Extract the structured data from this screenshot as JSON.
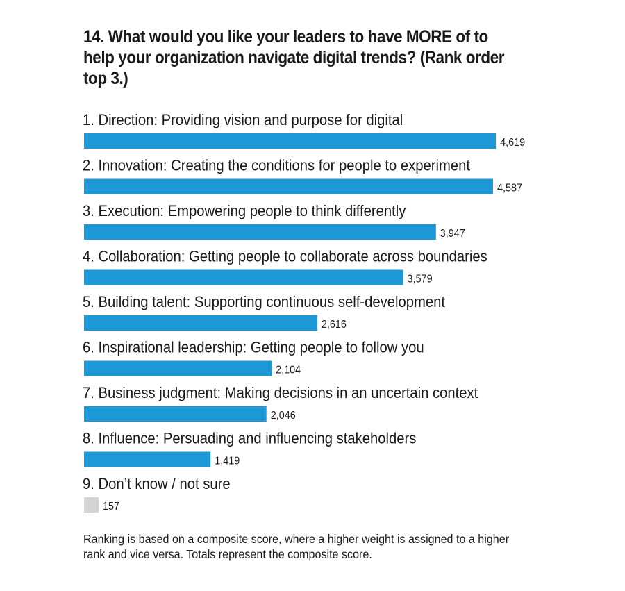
{
  "title": "14. What would you like your leaders to have MORE of to help your organization navigate digital trends? (Rank order top 3.)",
  "footnote": "Ranking is based on a composite score, where a higher weight is assigned to a higher rank and vice versa. Totals represent the composite score.",
  "colors": {
    "bar": "#1b98d5",
    "bar_muted": "#d4d4d4",
    "text": "#1a1a1a"
  },
  "chart_data": {
    "type": "bar",
    "orientation": "horizontal",
    "categories": [
      "1. Direction: Providing vision and purpose for digital",
      "2. Innovation: Creating the conditions for people to experiment",
      "3. Execution: Empowering people to think differently",
      "4. Collaboration: Getting people to collaborate across boundaries",
      "5. Building talent: Supporting continuous self-development",
      "6. Inspirational leadership: Getting people to follow you",
      "7. Business judgment: Making decisions in an uncertain context",
      "8. Influence: Persuading and influencing stakeholders",
      "9. Don’t know / not sure"
    ],
    "values": [
      4619,
      4587,
      3947,
      3579,
      2616,
      2104,
      2046,
      1419,
      157
    ],
    "value_labels": [
      "4,619",
      "4,587",
      "3,947",
      "3,579",
      "2,616",
      "2,104",
      "2,046",
      "1,419",
      "157"
    ],
    "muted": [
      false,
      false,
      false,
      false,
      false,
      false,
      false,
      false,
      true
    ],
    "title": "14. What would you like your leaders to have MORE of to help your organization navigate digital trends? (Rank order top 3.)",
    "xlabel": "",
    "ylabel": "",
    "xlim": [
      0,
      5000
    ],
    "grid": false,
    "legend": "none"
  }
}
